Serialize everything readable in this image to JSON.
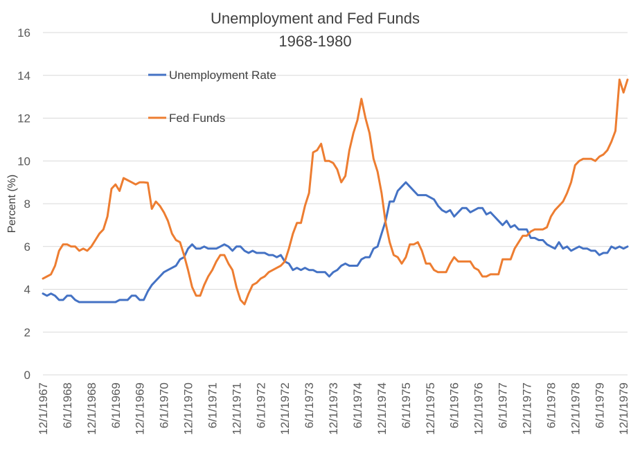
{
  "chart_data": {
    "type": "line",
    "title": "Unemployment and Fed Funds",
    "subtitle": "1968-1980",
    "ylabel": "Percent (%)",
    "xlabel": "",
    "ylim": [
      0,
      16
    ],
    "y_ticks": [
      0,
      2,
      4,
      6,
      8,
      10,
      12,
      14,
      16
    ],
    "grid": "horizontal",
    "legend_position": "top-left",
    "x_tick_labels": [
      "12/1/1967",
      "6/1/1968",
      "12/1/1968",
      "6/1/1969",
      "12/1/1969",
      "6/1/1970",
      "12/1/1970",
      "6/1/1971",
      "12/1/1971",
      "6/1/1972",
      "12/1/1972",
      "6/1/1973",
      "12/1/1973",
      "6/1/1974",
      "12/1/1974",
      "6/1/1975",
      "12/1/1975",
      "6/1/1976",
      "12/1/1976",
      "6/1/1977",
      "12/1/1977",
      "6/1/1978",
      "12/1/1978",
      "6/1/1979",
      "12/1/1979"
    ],
    "x_start": "12/1/1967",
    "x_end": "12/1/1979",
    "frequency": "monthly",
    "series": [
      {
        "name": "Unemployment Rate",
        "color": "#4472c4",
        "values": [
          3.8,
          3.7,
          3.8,
          3.7,
          3.5,
          3.5,
          3.7,
          3.7,
          3.5,
          3.4,
          3.4,
          3.4,
          3.4,
          3.4,
          3.4,
          3.4,
          3.4,
          3.4,
          3.4,
          3.5,
          3.5,
          3.5,
          3.7,
          3.7,
          3.5,
          3.5,
          3.9,
          4.2,
          4.4,
          4.6,
          4.8,
          4.9,
          5.0,
          5.1,
          5.4,
          5.5,
          5.9,
          6.1,
          5.9,
          5.9,
          6.0,
          5.9,
          5.9,
          5.9,
          6.0,
          6.1,
          6.0,
          5.8,
          6.0,
          6.0,
          5.8,
          5.7,
          5.8,
          5.7,
          5.7,
          5.7,
          5.6,
          5.6,
          5.5,
          5.6,
          5.3,
          5.2,
          4.9,
          5.0,
          4.9,
          5.0,
          4.9,
          4.9,
          4.8,
          4.8,
          4.8,
          4.6,
          4.8,
          4.9,
          5.1,
          5.2,
          5.1,
          5.1,
          5.1,
          5.4,
          5.5,
          5.5,
          5.9,
          6.0,
          6.6,
          7.2,
          8.1,
          8.1,
          8.6,
          8.8,
          9.0,
          8.8,
          8.6,
          8.4,
          8.4,
          8.4,
          8.3,
          8.2,
          7.9,
          7.7,
          7.6,
          7.7,
          7.4,
          7.6,
          7.8,
          7.8,
          7.6,
          7.7,
          7.8,
          7.8,
          7.5,
          7.6,
          7.4,
          7.2,
          7.0,
          7.2,
          6.9,
          7.0,
          6.8,
          6.8,
          6.8,
          6.4,
          6.4,
          6.3,
          6.3,
          6.1,
          6.0,
          5.9,
          6.2,
          5.9,
          6.0,
          5.8,
          5.9,
          6.0,
          5.9,
          5.9,
          5.8,
          5.8,
          5.6,
          5.7,
          5.7,
          6.0,
          5.9,
          6.0,
          5.9,
          6.0
        ]
      },
      {
        "name": "Fed Funds",
        "color": "#ed7d31",
        "values": [
          4.5,
          4.6,
          4.7,
          5.1,
          5.8,
          6.1,
          6.1,
          6.0,
          6.0,
          5.8,
          5.9,
          5.8,
          6.0,
          6.3,
          6.6,
          6.8,
          7.4,
          8.7,
          8.9,
          8.6,
          9.2,
          9.1,
          9.0,
          8.9,
          9.0,
          9.0,
          8.98,
          7.76,
          8.1,
          7.9,
          7.6,
          7.2,
          6.6,
          6.3,
          6.2,
          5.6,
          4.9,
          4.1,
          3.7,
          3.7,
          4.2,
          4.6,
          4.9,
          5.3,
          5.6,
          5.6,
          5.2,
          4.9,
          4.1,
          3.5,
          3.3,
          3.8,
          4.2,
          4.3,
          4.5,
          4.6,
          4.8,
          4.9,
          5.0,
          5.1,
          5.3,
          5.9,
          6.6,
          7.1,
          7.1,
          7.9,
          8.5,
          10.4,
          10.5,
          10.8,
          10.0,
          10.0,
          9.9,
          9.6,
          9.0,
          9.3,
          10.5,
          11.3,
          11.9,
          12.9,
          12.0,
          11.3,
          10.1,
          9.5,
          8.5,
          7.1,
          6.2,
          5.6,
          5.5,
          5.2,
          5.5,
          6.1,
          6.1,
          6.2,
          5.8,
          5.2,
          5.2,
          4.9,
          4.8,
          4.8,
          4.8,
          5.2,
          5.5,
          5.3,
          5.3,
          5.3,
          5.3,
          5.0,
          4.9,
          4.6,
          4.6,
          4.7,
          4.7,
          4.7,
          5.4,
          5.4,
          5.4,
          5.9,
          6.2,
          6.5,
          6.5,
          6.7,
          6.8,
          6.8,
          6.8,
          6.9,
          7.4,
          7.7,
          7.9,
          8.1,
          8.5,
          9.0,
          9.8,
          10.0,
          10.1,
          10.1,
          10.1,
          10.0,
          10.2,
          10.3,
          10.5,
          10.9,
          11.4,
          13.8,
          13.2,
          13.8
        ]
      }
    ]
  }
}
